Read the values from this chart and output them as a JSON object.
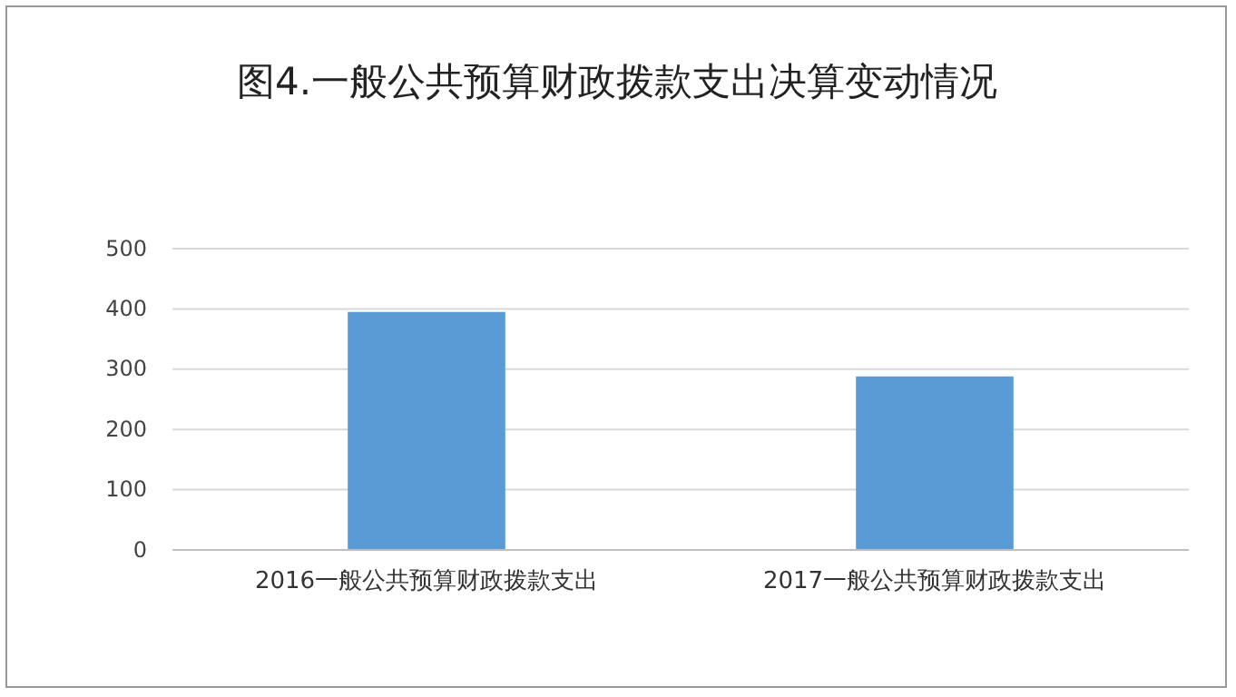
{
  "chart_data": {
    "type": "bar",
    "title": "图4.一般公共预算财政拨款支出决算变动情况",
    "categories": [
      "2016一般公共预算财政拨款支出",
      "2017一般公共预算财政拨款支出"
    ],
    "values": [
      395,
      288
    ],
    "color": "#5b9bd5",
    "ylim": [
      0,
      500
    ],
    "yticks": [
      0,
      100,
      200,
      300,
      400,
      500
    ],
    "grid": "y"
  }
}
